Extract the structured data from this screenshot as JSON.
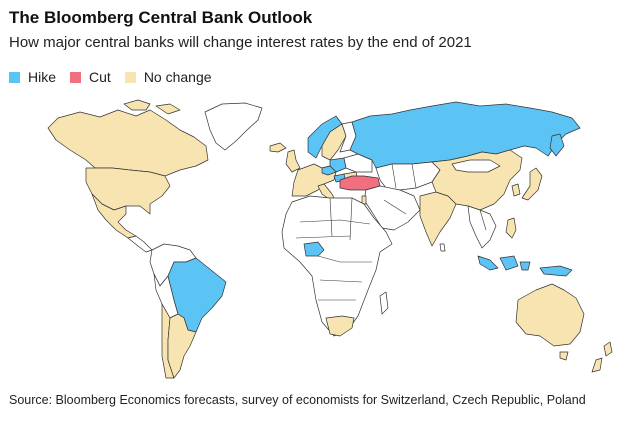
{
  "title": "The Bloomberg Central Bank Outlook",
  "subtitle": "How major central banks will change interest rates by the end of 2021",
  "legend": [
    {
      "label": "Hike",
      "color": "#5bc4f5"
    },
    {
      "label": "Cut",
      "color": "#f1707f"
    },
    {
      "label": "No change",
      "color": "#f8e4b0"
    }
  ],
  "colors": {
    "hike": "#5bc4f5",
    "cut": "#f1707f",
    "none": "#f8e4b0",
    "other": "#ffffff"
  },
  "source": "Source: Bloomberg Economics forecasts, survey of economists for Switzerland, Czech Republic, Poland"
}
